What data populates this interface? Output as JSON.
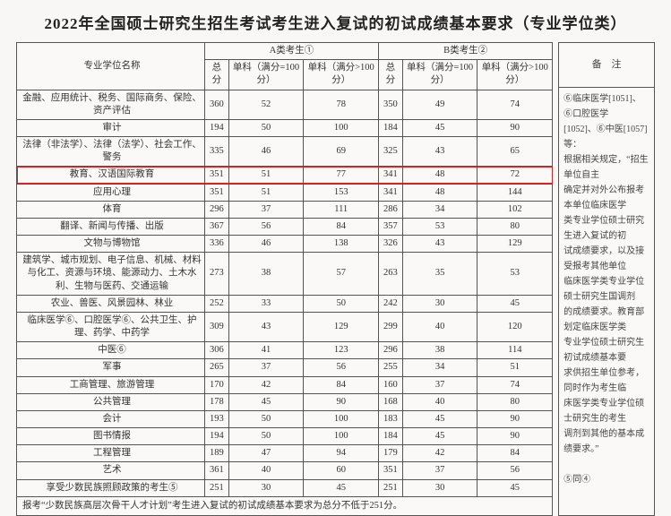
{
  "title": "2022年全国硕士研究生招生考试考生进入复试的初试成绩基本要求（专业学位类）",
  "header": {
    "col_name": "专业学位名称",
    "groupA": "A类考生①",
    "groupB": "B类考生②",
    "total": "总分",
    "sub100": "单科（满分=100分）",
    "subover100": "单科（满分>100分）",
    "notes": "备　注"
  },
  "rows": [
    {
      "name": "金融、应用统计、税务、国际商务、保险、资产评估",
      "a": [
        360,
        52,
        78
      ],
      "b": [
        350,
        49,
        74
      ]
    },
    {
      "name": "审计",
      "a": [
        194,
        50,
        100
      ],
      "b": [
        184,
        45,
        90
      ]
    },
    {
      "name": "法律（非法学）、法律（法学）、社会工作、警务",
      "a": [
        335,
        46,
        69
      ],
      "b": [
        325,
        43,
        65
      ]
    },
    {
      "name": "教育、汉语国际教育",
      "a": [
        351,
        51,
        77
      ],
      "b": [
        341,
        48,
        72
      ],
      "hl": true
    },
    {
      "name": "应用心理",
      "a": [
        351,
        51,
        153
      ],
      "b": [
        341,
        48,
        144
      ]
    },
    {
      "name": "体育",
      "a": [
        296,
        37,
        111
      ],
      "b": [
        286,
        34,
        102
      ]
    },
    {
      "name": "翻译、新闻与传播、出版",
      "a": [
        367,
        56,
        84
      ],
      "b": [
        357,
        53,
        80
      ]
    },
    {
      "name": "文物与博物馆",
      "a": [
        336,
        46,
        138
      ],
      "b": [
        326,
        43,
        129
      ]
    },
    {
      "name": "建筑学、城市规划、电子信息、机械、材料与化工、资源与环境、能源动力、土木水利、生物与医药、交通运输",
      "a": [
        273,
        38,
        57
      ],
      "b": [
        263,
        35,
        53
      ]
    },
    {
      "name": "农业、兽医、风景园林、林业",
      "a": [
        252,
        33,
        50
      ],
      "b": [
        242,
        30,
        45
      ]
    },
    {
      "name": "临床医学⑥、口腔医学⑥、公共卫生、护理、药学、中药学",
      "a": [
        309,
        43,
        129
      ],
      "b": [
        299,
        40,
        120
      ]
    },
    {
      "name": "中医⑥",
      "a": [
        306,
        41,
        123
      ],
      "b": [
        296,
        38,
        114
      ]
    },
    {
      "name": "军事",
      "a": [
        265,
        37,
        56
      ],
      "b": [
        255,
        34,
        51
      ]
    },
    {
      "name": "工商管理、旅游管理",
      "a": [
        170,
        42,
        84
      ],
      "b": [
        160,
        37,
        74
      ]
    },
    {
      "name": "公共管理",
      "a": [
        178,
        45,
        90
      ],
      "b": [
        168,
        40,
        80
      ]
    },
    {
      "name": "会计",
      "a": [
        193,
        50,
        100
      ],
      "b": [
        183,
        45,
        90
      ]
    },
    {
      "name": "图书情报",
      "a": [
        194,
        50,
        100
      ],
      "b": [
        184,
        45,
        90
      ]
    },
    {
      "name": "工程管理",
      "a": [
        189,
        47,
        94
      ],
      "b": [
        179,
        42,
        84
      ]
    },
    {
      "name": "艺术",
      "a": [
        361,
        40,
        60
      ],
      "b": [
        351,
        37,
        56
      ]
    },
    {
      "name": "享受少数民族照顾政策的考生⑤",
      "a": [
        251,
        30,
        45
      ],
      "b": [
        251,
        30,
        45
      ]
    }
  ],
  "footnote": "报考“少数民族高层次骨干人才计划”考生进入复试的初试成绩基本要求为总分不低于251分。",
  "side_notes": [
    "⑥临床医学[1051]、⑥口腔医学",
    "[1052]、⑥中医[1057]等：",
    "根据相关规定，“招生单位自主",
    "确定并对外公布报考本单位临床医学",
    "类专业学位硕士研究生进入复试的初",
    "试成绩要求，以及接受报考其他单位",
    "临床医学类专业学位硕士研究生国调剂",
    "的成绩要求。教育部划定临床医学类",
    "专业学位硕士研究生初试成绩基本要",
    "求供招生单位参考，同时作为考生临",
    "床医学类专业学位硕士研究生的考生",
    "调剂到其他的基本成绩要求。”",
    "",
    "⑤同④"
  ],
  "colors": {
    "highlight": "#d22",
    "border": "#555",
    "bg": "#faf9f7"
  }
}
